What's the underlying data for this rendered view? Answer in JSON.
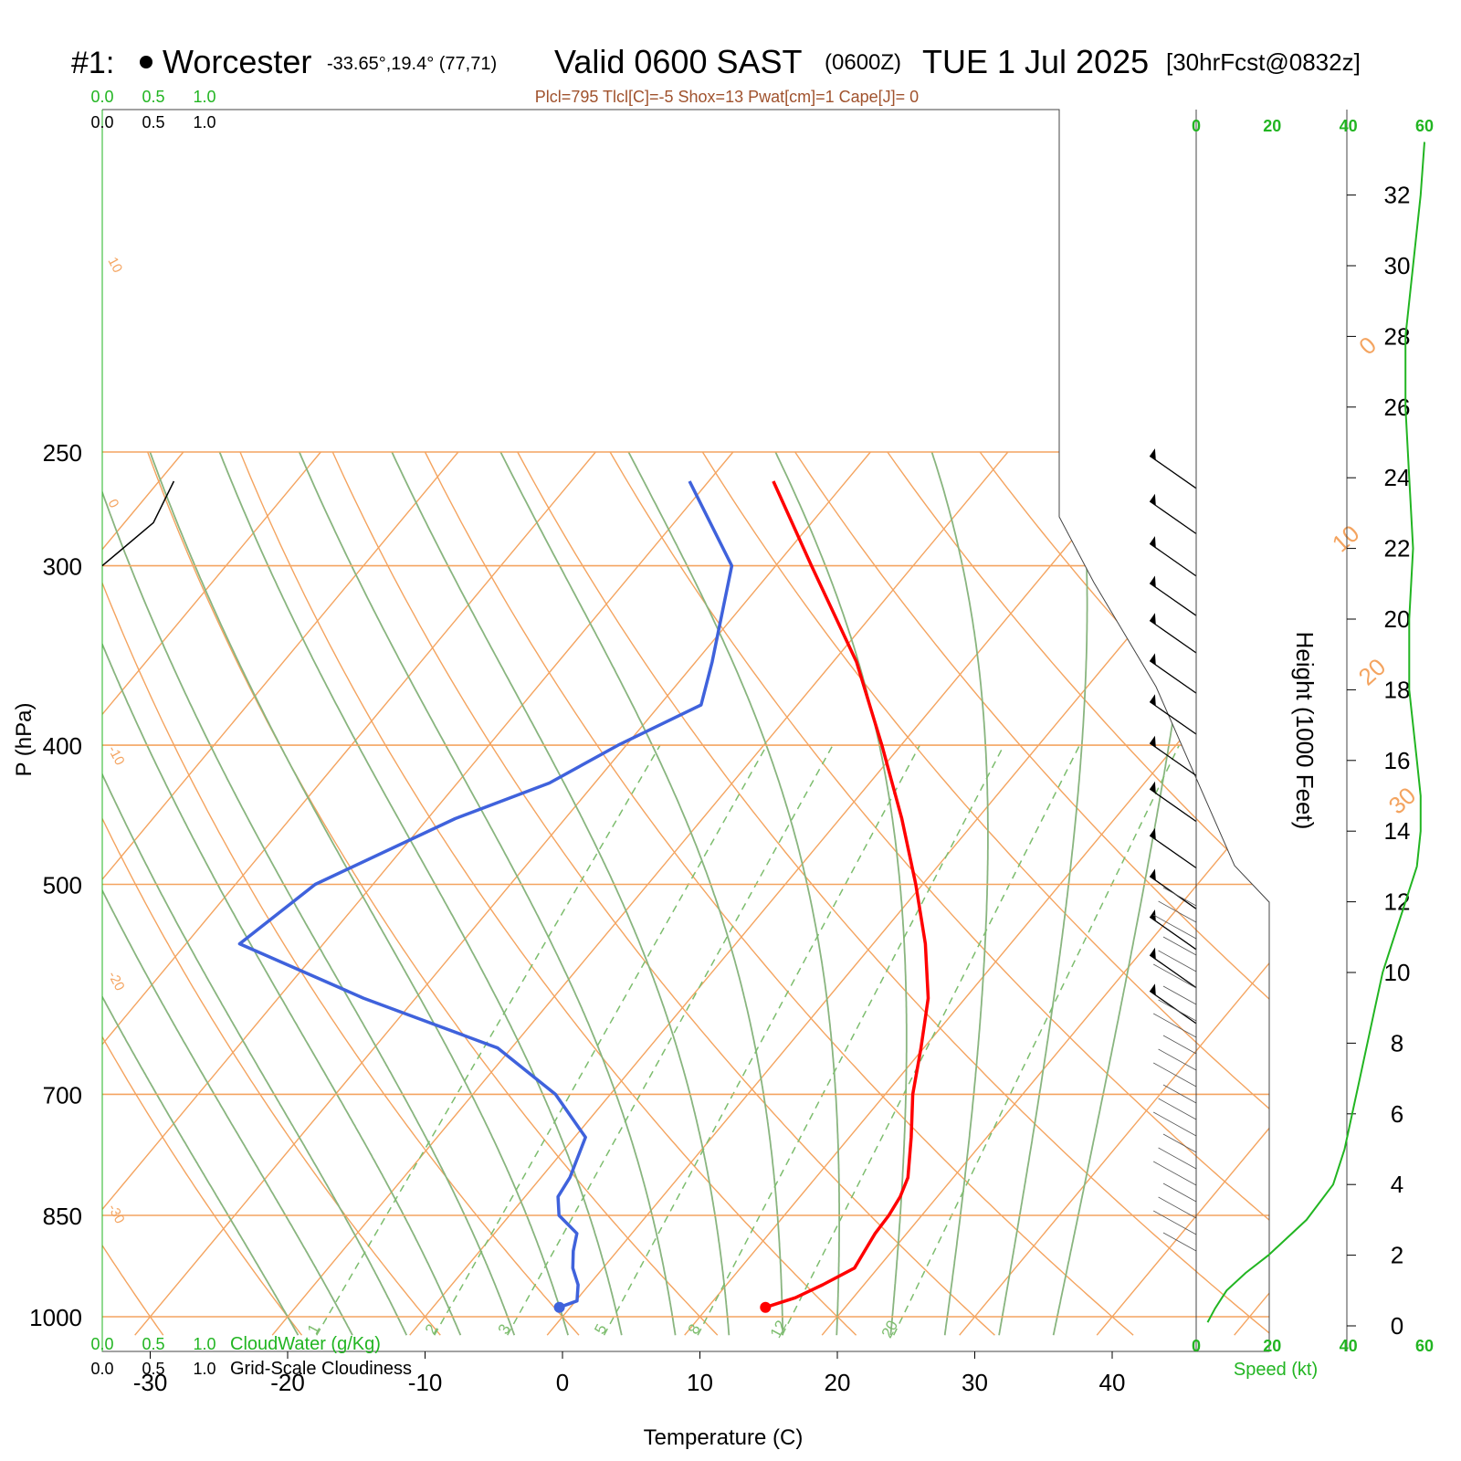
{
  "header": {
    "station_id": "#1:",
    "station_name": "Worcester",
    "coords": "-33.65°,19.4° (77,71)",
    "valid": "Valid 0600 SAST",
    "zulu": "(0600Z)",
    "date": "TUE 1 Jul 2025",
    "forecast": "[30hrFcst@0832z]",
    "indices": "Plcl=795 Tlcl[C]=-5 Shox=13 Pwat[cm]=1 Cape[J]= 0"
  },
  "colors": {
    "temperature": "#ff0000",
    "dewpoint": "#3f62dc",
    "isotherm": "#f4a460",
    "dry_adiabat": "#f4a460",
    "moist_adiabat": "#89b57f",
    "mixing_ratio": "#7dbd6e",
    "speed_profile": "#22b522",
    "cloud_axis": "#22b522",
    "indices_text": "#a0522d"
  },
  "chart_data": {
    "type": "skew-t",
    "xlabel": "Temperature (C)",
    "ylabel": "P (hPa)",
    "right_label": "Height (1000 Feet)",
    "x_ticks": [
      "-30",
      "-20",
      "-10",
      "0",
      "10",
      "20",
      "30",
      "40"
    ],
    "x_tick_values": [
      -30,
      -20,
      -10,
      0,
      10,
      20,
      30,
      40
    ],
    "pressure_labels": [
      "250",
      "300",
      "400",
      "500",
      "700",
      "850",
      "1000"
    ],
    "pressure_values": [
      250,
      300,
      400,
      500,
      700,
      850,
      1000
    ],
    "pressure_range": [
      1030,
      250
    ],
    "height_labels": [
      "0",
      "2",
      "4",
      "6",
      "8",
      "10",
      "12",
      "14",
      "16",
      "18",
      "20",
      "22",
      "24",
      "26",
      "28",
      "30",
      "32"
    ],
    "height_values": [
      0,
      2,
      4,
      6,
      8,
      10,
      12,
      14,
      16,
      18,
      20,
      22,
      24,
      26,
      28,
      30,
      32
    ],
    "isotherm_labels": [
      {
        "text": "0",
        "t": 0
      },
      {
        "text": "10",
        "t": 10
      },
      {
        "text": "20",
        "t": 20
      },
      {
        "text": "30",
        "t": 30
      }
    ],
    "theta_labels": [
      {
        "text": "10",
        "theta": 10
      },
      {
        "text": "0",
        "theta": 0
      },
      {
        "text": "-10",
        "theta": -10
      },
      {
        "text": "-20",
        "theta": -20
      },
      {
        "text": "-30",
        "theta": -30
      }
    ],
    "mixing_ratio_labels": [
      "1",
      "2",
      "3",
      "5",
      "8",
      "12",
      "20"
    ],
    "mixing_ratio_values": [
      1,
      2,
      3,
      5,
      8,
      12,
      20
    ],
    "temperature": [
      {
        "p": 985,
        "t": 14.2
      },
      {
        "p": 970,
        "t": 15.8
      },
      {
        "p": 950,
        "t": 17.0
      },
      {
        "p": 925,
        "t": 18.3
      },
      {
        "p": 900,
        "t": 18.0
      },
      {
        "p": 875,
        "t": 17.7
      },
      {
        "p": 850,
        "t": 17.6
      },
      {
        "p": 825,
        "t": 17.3
      },
      {
        "p": 800,
        "t": 16.7
      },
      {
        "p": 750,
        "t": 14.5
      },
      {
        "p": 700,
        "t": 12.0
      },
      {
        "p": 650,
        "t": 9.8
      },
      {
        "p": 600,
        "t": 7.3
      },
      {
        "p": 550,
        "t": 3.8
      },
      {
        "p": 500,
        "t": -0.5
      },
      {
        "p": 450,
        "t": -5.5
      },
      {
        "p": 400,
        "t": -11.4
      },
      {
        "p": 350,
        "t": -18.3
      },
      {
        "p": 300,
        "t": -27.4
      },
      {
        "p": 262,
        "t": -35.3
      }
    ],
    "dewpoint": [
      {
        "p": 985,
        "t": -0.8
      },
      {
        "p": 975,
        "t": 0.1
      },
      {
        "p": 950,
        "t": -0.8
      },
      {
        "p": 925,
        "t": -2.2
      },
      {
        "p": 900,
        "t": -3.2
      },
      {
        "p": 875,
        "t": -4.0
      },
      {
        "p": 850,
        "t": -6.4
      },
      {
        "p": 825,
        "t": -7.6
      },
      {
        "p": 800,
        "t": -7.9
      },
      {
        "p": 750,
        "t": -9.2
      },
      {
        "p": 700,
        "t": -14.0
      },
      {
        "p": 650,
        "t": -21.0
      },
      {
        "p": 600,
        "t": -33.8
      },
      {
        "p": 550,
        "t": -46.1
      },
      {
        "p": 500,
        "t": -44.2
      },
      {
        "p": 450,
        "t": -38.0
      },
      {
        "p": 425,
        "t": -33.3
      },
      {
        "p": 400,
        "t": -30.6
      },
      {
        "p": 375,
        "t": -27.0
      },
      {
        "p": 350,
        "t": -28.8
      },
      {
        "p": 300,
        "t": -33.2
      },
      {
        "p": 262,
        "t": -41.4
      }
    ],
    "cloud_water_axis": {
      "label": "CloudWater (g/Kg)",
      "ticks": [
        "0.0",
        "0.5",
        "1.0"
      ]
    },
    "cloudiness_axis": {
      "label": "Grid-Scale Cloudiness",
      "ticks": [
        "0.0",
        "0.5",
        "1.0"
      ]
    },
    "cloudiness_profile": [
      {
        "p": 300,
        "v": 0.0
      },
      {
        "p": 280,
        "v": 0.5
      },
      {
        "p": 262,
        "v": 0.7
      }
    ],
    "speed_axis": {
      "label": "Speed (kt)",
      "ticks": [
        "0",
        "20",
        "40",
        "60"
      ],
      "values": [
        0,
        20,
        40,
        60
      ]
    },
    "speed_profile": [
      {
        "h": 0.1,
        "s": 3
      },
      {
        "h": 0.5,
        "s": 5
      },
      {
        "h": 1.0,
        "s": 8
      },
      {
        "h": 1.5,
        "s": 13
      },
      {
        "h": 2.0,
        "s": 19
      },
      {
        "h": 3.0,
        "s": 29
      },
      {
        "h": 4.0,
        "s": 36
      },
      {
        "h": 5.0,
        "s": 39
      },
      {
        "h": 6.0,
        "s": 41
      },
      {
        "h": 7.0,
        "s": 43
      },
      {
        "h": 8.0,
        "s": 45
      },
      {
        "h": 9.0,
        "s": 47
      },
      {
        "h": 10.0,
        "s": 49
      },
      {
        "h": 11.0,
        "s": 52
      },
      {
        "h": 12.0,
        "s": 55
      },
      {
        "h": 13.0,
        "s": 58
      },
      {
        "h": 14.0,
        "s": 59
      },
      {
        "h": 15.0,
        "s": 59
      },
      {
        "h": 16.0,
        "s": 58
      },
      {
        "h": 18.0,
        "s": 56
      },
      {
        "h": 20.0,
        "s": 56
      },
      {
        "h": 22.0,
        "s": 57
      },
      {
        "h": 24.0,
        "s": 56
      },
      {
        "h": 26.0,
        "s": 55
      },
      {
        "h": 28.0,
        "s": 55
      },
      {
        "h": 30.0,
        "s": 57
      },
      {
        "h": 32.0,
        "s": 59
      },
      {
        "h": 33.5,
        "s": 60
      }
    ],
    "wind_barbs": [
      {
        "p": 265,
        "dir": 305,
        "spd": 55
      },
      {
        "p": 285,
        "dir": 305,
        "spd": 55
      },
      {
        "p": 305,
        "dir": 305,
        "spd": 55
      },
      {
        "p": 325,
        "dir": 305,
        "spd": 55
      },
      {
        "p": 345,
        "dir": 305,
        "spd": 55
      },
      {
        "p": 368,
        "dir": 305,
        "spd": 55
      },
      {
        "p": 393,
        "dir": 305,
        "spd": 55
      },
      {
        "p": 420,
        "dir": 305,
        "spd": 55
      },
      {
        "p": 452,
        "dir": 305,
        "spd": 55
      },
      {
        "p": 487,
        "dir": 305,
        "spd": 55
      },
      {
        "p": 520,
        "dir": 305,
        "spd": 55
      },
      {
        "p": 555,
        "dir": 305,
        "spd": 55
      },
      {
        "p": 590,
        "dir": 305,
        "spd": 55
      },
      {
        "p": 625,
        "dir": 305,
        "spd": 55
      }
    ]
  }
}
